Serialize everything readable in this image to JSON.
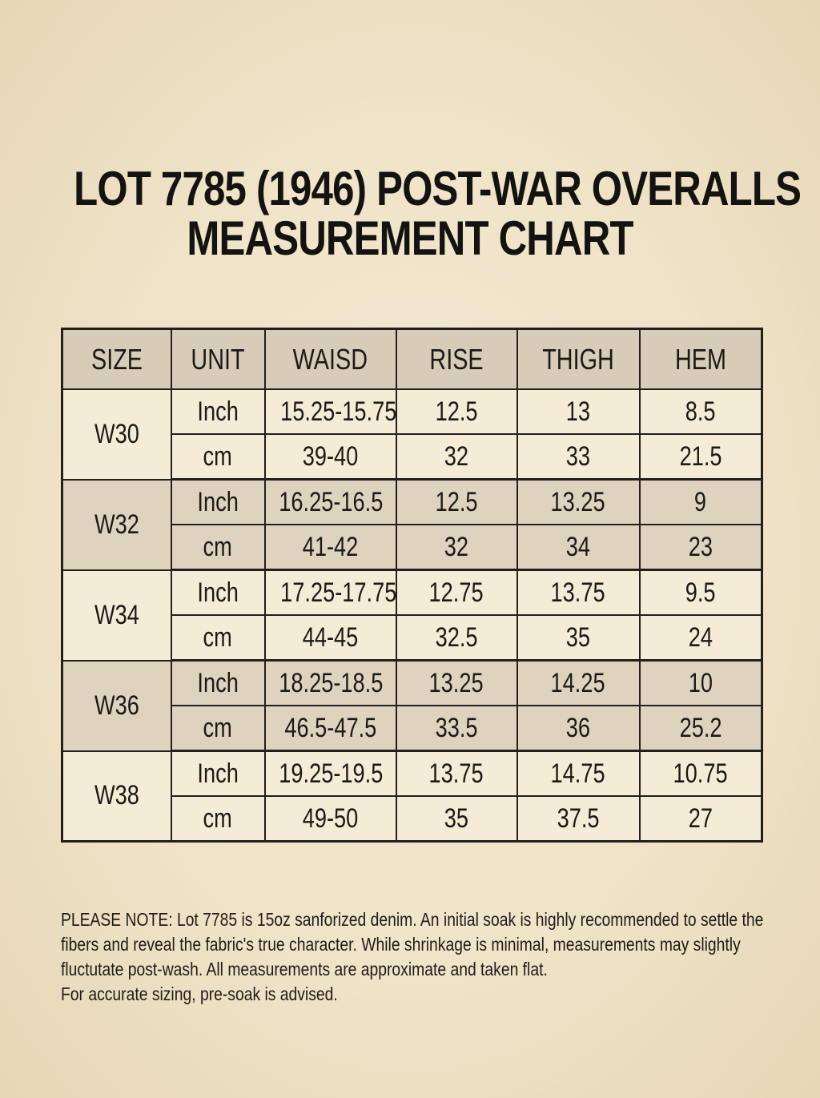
{
  "title": {
    "line1": "LOT 7785 (1946) POST-WAR OVERALLS",
    "line2": "MEASUREMENT CHART"
  },
  "table": {
    "headers": [
      "SIZE",
      "UNIT",
      "WAISD",
      "RISE",
      "THIGH",
      "HEM"
    ],
    "rows": [
      {
        "size": "W30",
        "inch": {
          "unit": "Inch",
          "waist": "15.25-15.75",
          "rise": "12.5",
          "thigh": "13",
          "hem": "8.5"
        },
        "cm": {
          "unit": "cm",
          "waist": "39-40",
          "rise": "32",
          "thigh": "33",
          "hem": "21.5"
        }
      },
      {
        "size": "W32",
        "inch": {
          "unit": "Inch",
          "waist": "16.25-16.5",
          "rise": "12.5",
          "thigh": "13.25",
          "hem": "9"
        },
        "cm": {
          "unit": "cm",
          "waist": "41-42",
          "rise": "32",
          "thigh": "34",
          "hem": "23"
        }
      },
      {
        "size": "W34",
        "inch": {
          "unit": "Inch",
          "waist": "17.25-17.75",
          "rise": "12.75",
          "thigh": "13.75",
          "hem": "9.5"
        },
        "cm": {
          "unit": "cm",
          "waist": "44-45",
          "rise": "32.5",
          "thigh": "35",
          "hem": "24"
        }
      },
      {
        "size": "W36",
        "inch": {
          "unit": "Inch",
          "waist": "18.25-18.5",
          "rise": "13.25",
          "thigh": "14.25",
          "hem": "10"
        },
        "cm": {
          "unit": "cm",
          "waist": "46.5-47.5",
          "rise": "33.5",
          "thigh": "36",
          "hem": "25.2"
        }
      },
      {
        "size": "W38",
        "inch": {
          "unit": "Inch",
          "waist": "19.25-19.5",
          "rise": "13.75",
          "thigh": "14.75",
          "hem": "10.75"
        },
        "cm": {
          "unit": "cm",
          "waist": "49-50",
          "rise": "35",
          "thigh": "37.5",
          "hem": "27"
        }
      }
    ]
  },
  "note": {
    "line1": "PLEASE NOTE: Lot 7785 is 15oz sanforized denim. An initial soak is highly recommended to settle the",
    "line2": "fibers and reveal the fabric's true character. While shrinkage is minimal, measurements may slightly",
    "line3": "fluctutate post-wash. All measurements are approximate and taken flat.",
    "line4": "For accurate sizing, pre-soak is advised."
  },
  "colors": {
    "background": "#efe3c8",
    "header_fill": "#d6ccb8",
    "shaded_row_fill": "#ddd3bf",
    "light_row_fill": "#f5ecd7",
    "ink": "#1c1a17"
  }
}
